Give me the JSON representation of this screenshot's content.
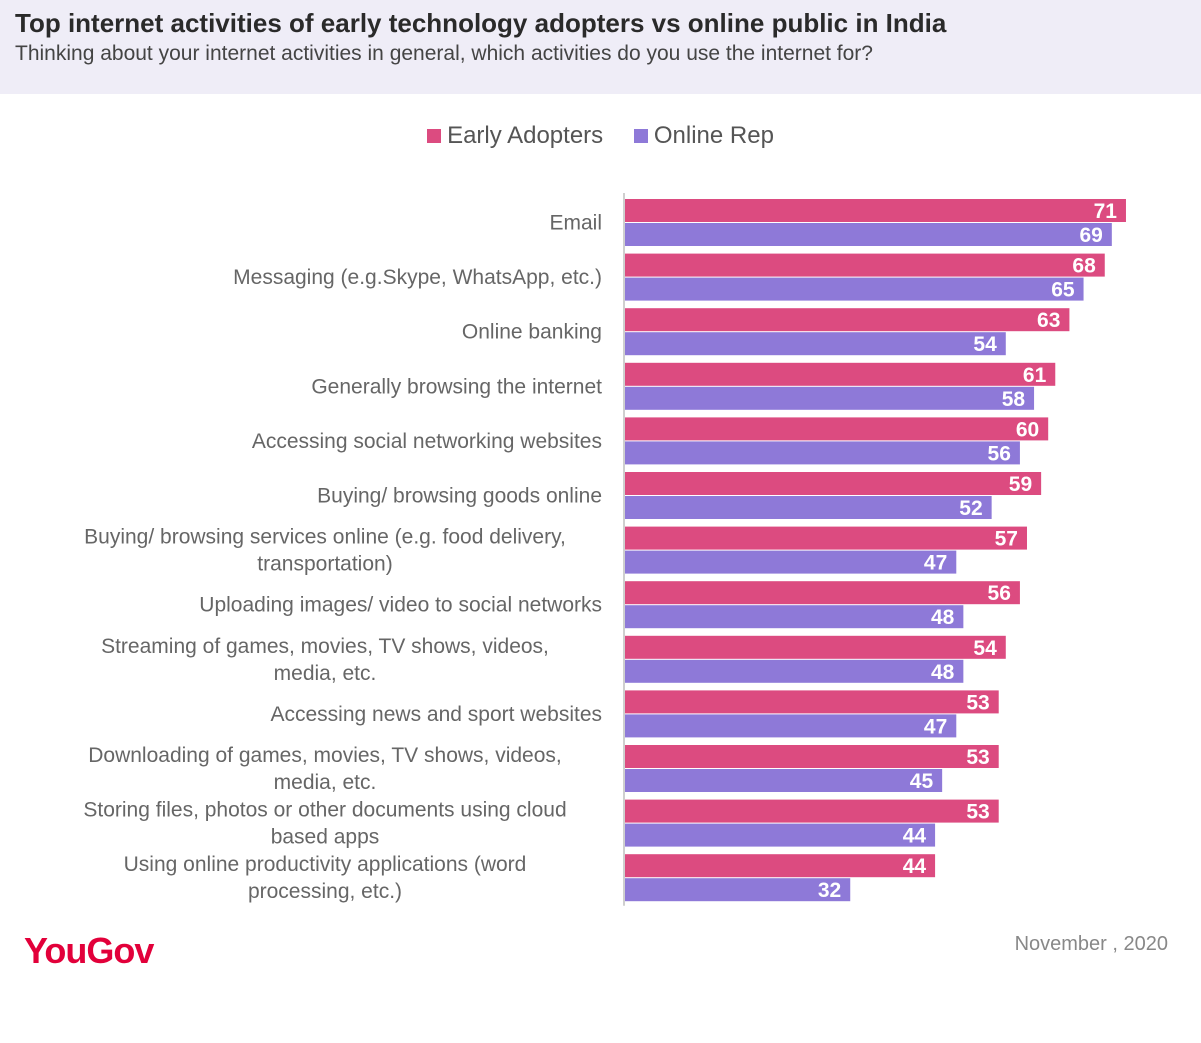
{
  "header": {
    "title": "Top internet activities of early technology adopters vs online public in India",
    "subtitle": "Thinking about your internet activities in general, which activities do you use the internet for?"
  },
  "colors": {
    "early_adopters": "#dc4b80",
    "online_rep": "#8e79d8",
    "header_bg": "#efedf7",
    "brand": "#e2003a"
  },
  "chart_data": {
    "type": "bar",
    "orientation": "horizontal",
    "legend_position": "top-center",
    "xlim": [
      0,
      75
    ],
    "grid": false,
    "categories": [
      "Email",
      "Messaging (e.g.Skype, WhatsApp, etc.)",
      "Online banking",
      "Generally browsing the internet",
      "Accessing social networking websites",
      "Buying/ browsing goods online ",
      "Buying/ browsing services online (e.g. food delivery, transportation)",
      "Uploading images/ video to social networks",
      "Streaming of games, movies, TV shows, videos, media, etc.",
      "Accessing news and sport websites",
      "Downloading of games, movies, TV shows, videos, media, etc.",
      "Storing files, photos or other documents using cloud based apps",
      "Using online productivity applications (word processing, etc.)"
    ],
    "category_lines": [
      [
        "Email"
      ],
      [
        "Messaging (e.g.Skype, WhatsApp, etc.)"
      ],
      [
        "Online banking"
      ],
      [
        "Generally browsing the internet"
      ],
      [
        "Accessing social networking websites"
      ],
      [
        "Buying/ browsing goods online "
      ],
      [
        "Buying/ browsing services online (e.g. food delivery,",
        "transportation)"
      ],
      [
        "Uploading images/ video to social networks"
      ],
      [
        "Streaming of games, movies, TV shows, videos,",
        "media, etc."
      ],
      [
        "Accessing news and sport websites"
      ],
      [
        "Downloading of games, movies, TV shows, videos,",
        "media, etc."
      ],
      [
        "Storing files, photos or other documents using cloud",
        "based apps"
      ],
      [
        "Using online productivity applications (word",
        "processing, etc.)"
      ]
    ],
    "series": [
      {
        "name": "Early Adopters",
        "values": [
          71,
          68,
          63,
          61,
          60,
          59,
          57,
          56,
          54,
          53,
          53,
          53,
          44
        ]
      },
      {
        "name": "Online Rep",
        "values": [
          69,
          65,
          54,
          58,
          56,
          52,
          47,
          48,
          48,
          47,
          45,
          44,
          32
        ]
      }
    ]
  },
  "footer": {
    "brand": "YouGov",
    "date": "November , 2020"
  }
}
